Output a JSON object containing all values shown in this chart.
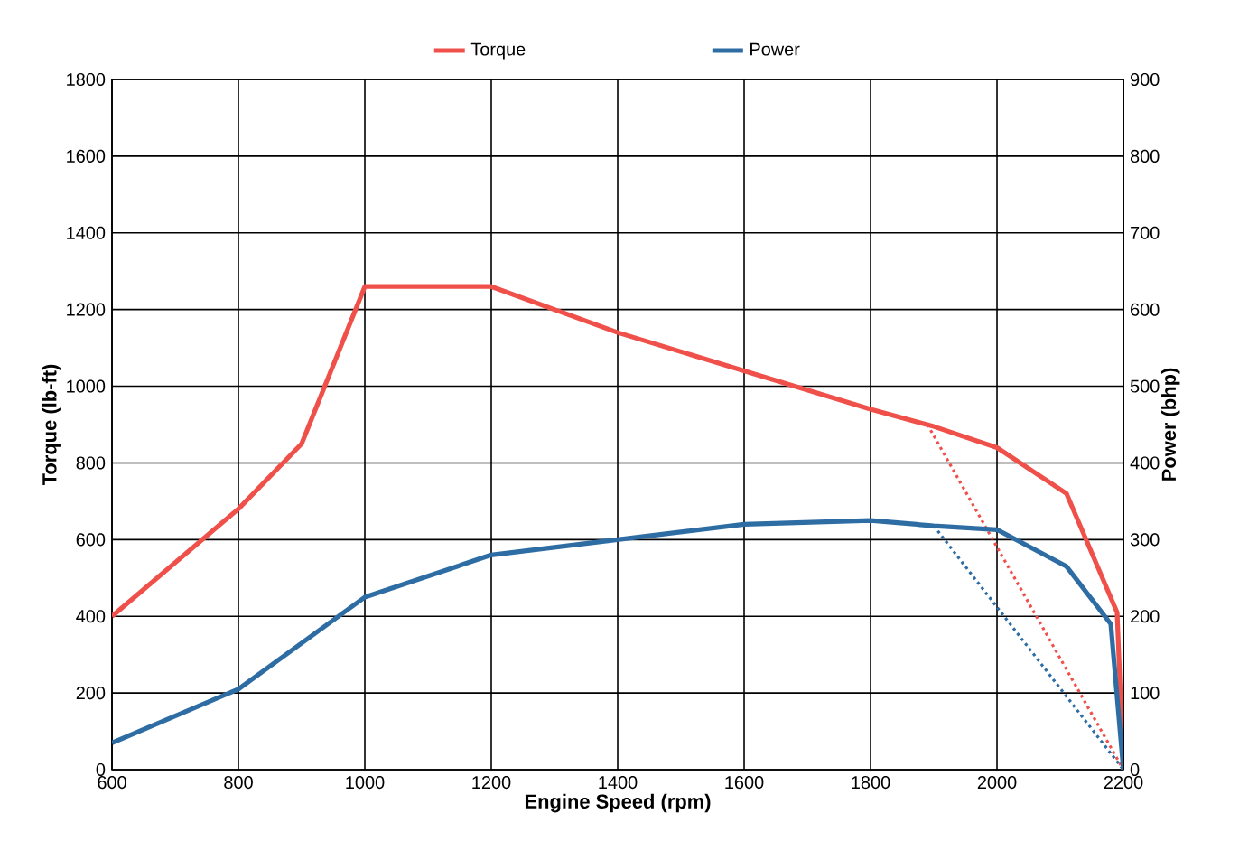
{
  "chart_data": {
    "type": "line",
    "xlabel": "Engine Speed (rpm)",
    "ylabel": "Torque (lb-ft)",
    "y2label": "Power (bhp)",
    "xlim": [
      600,
      2200
    ],
    "xticks": [
      600,
      800,
      1000,
      1200,
      1400,
      1600,
      1800,
      2000,
      2200
    ],
    "ylim": [
      0,
      1800
    ],
    "yticks": [
      0,
      200,
      400,
      600,
      800,
      1000,
      1200,
      1400,
      1600,
      1800
    ],
    "y2lim": [
      0,
      900
    ],
    "y2ticks": [
      0,
      100,
      200,
      300,
      400,
      500,
      600,
      700,
      800,
      900
    ],
    "grid": true,
    "legend": "top",
    "marker": "none",
    "line_style": "solid",
    "series": [
      {
        "name": "Torque",
        "color": "#f0504a",
        "x": [
          600,
          800,
          900,
          1000,
          1200,
          1400,
          1600,
          1800,
          1900,
          2000,
          2110,
          2190,
          2200
        ],
        "values": [
          400,
          680,
          850,
          1260,
          1260,
          1140,
          1040,
          940,
          895,
          840,
          720,
          410,
          0
        ]
      },
      {
        "name": "Power",
        "color": "#2e6da4",
        "axis": "y2",
        "x": [
          600,
          800,
          1000,
          1200,
          1400,
          1600,
          1800,
          1900,
          2000,
          2110,
          2180,
          2200
        ],
        "values": [
          35,
          105,
          225,
          280,
          300,
          320,
          325,
          318,
          313,
          265,
          190,
          0
        ]
      },
      {
        "color": "#f0504a",
        "line_style": "dotted",
        "x": [
          1890,
          2200
        ],
        "values": [
          900,
          0
        ]
      },
      {
        "color": "#2e6da4",
        "line_style": "dotted",
        "axis": "y2",
        "x": [
          1900,
          2200
        ],
        "values": [
          318,
          0
        ]
      }
    ]
  }
}
